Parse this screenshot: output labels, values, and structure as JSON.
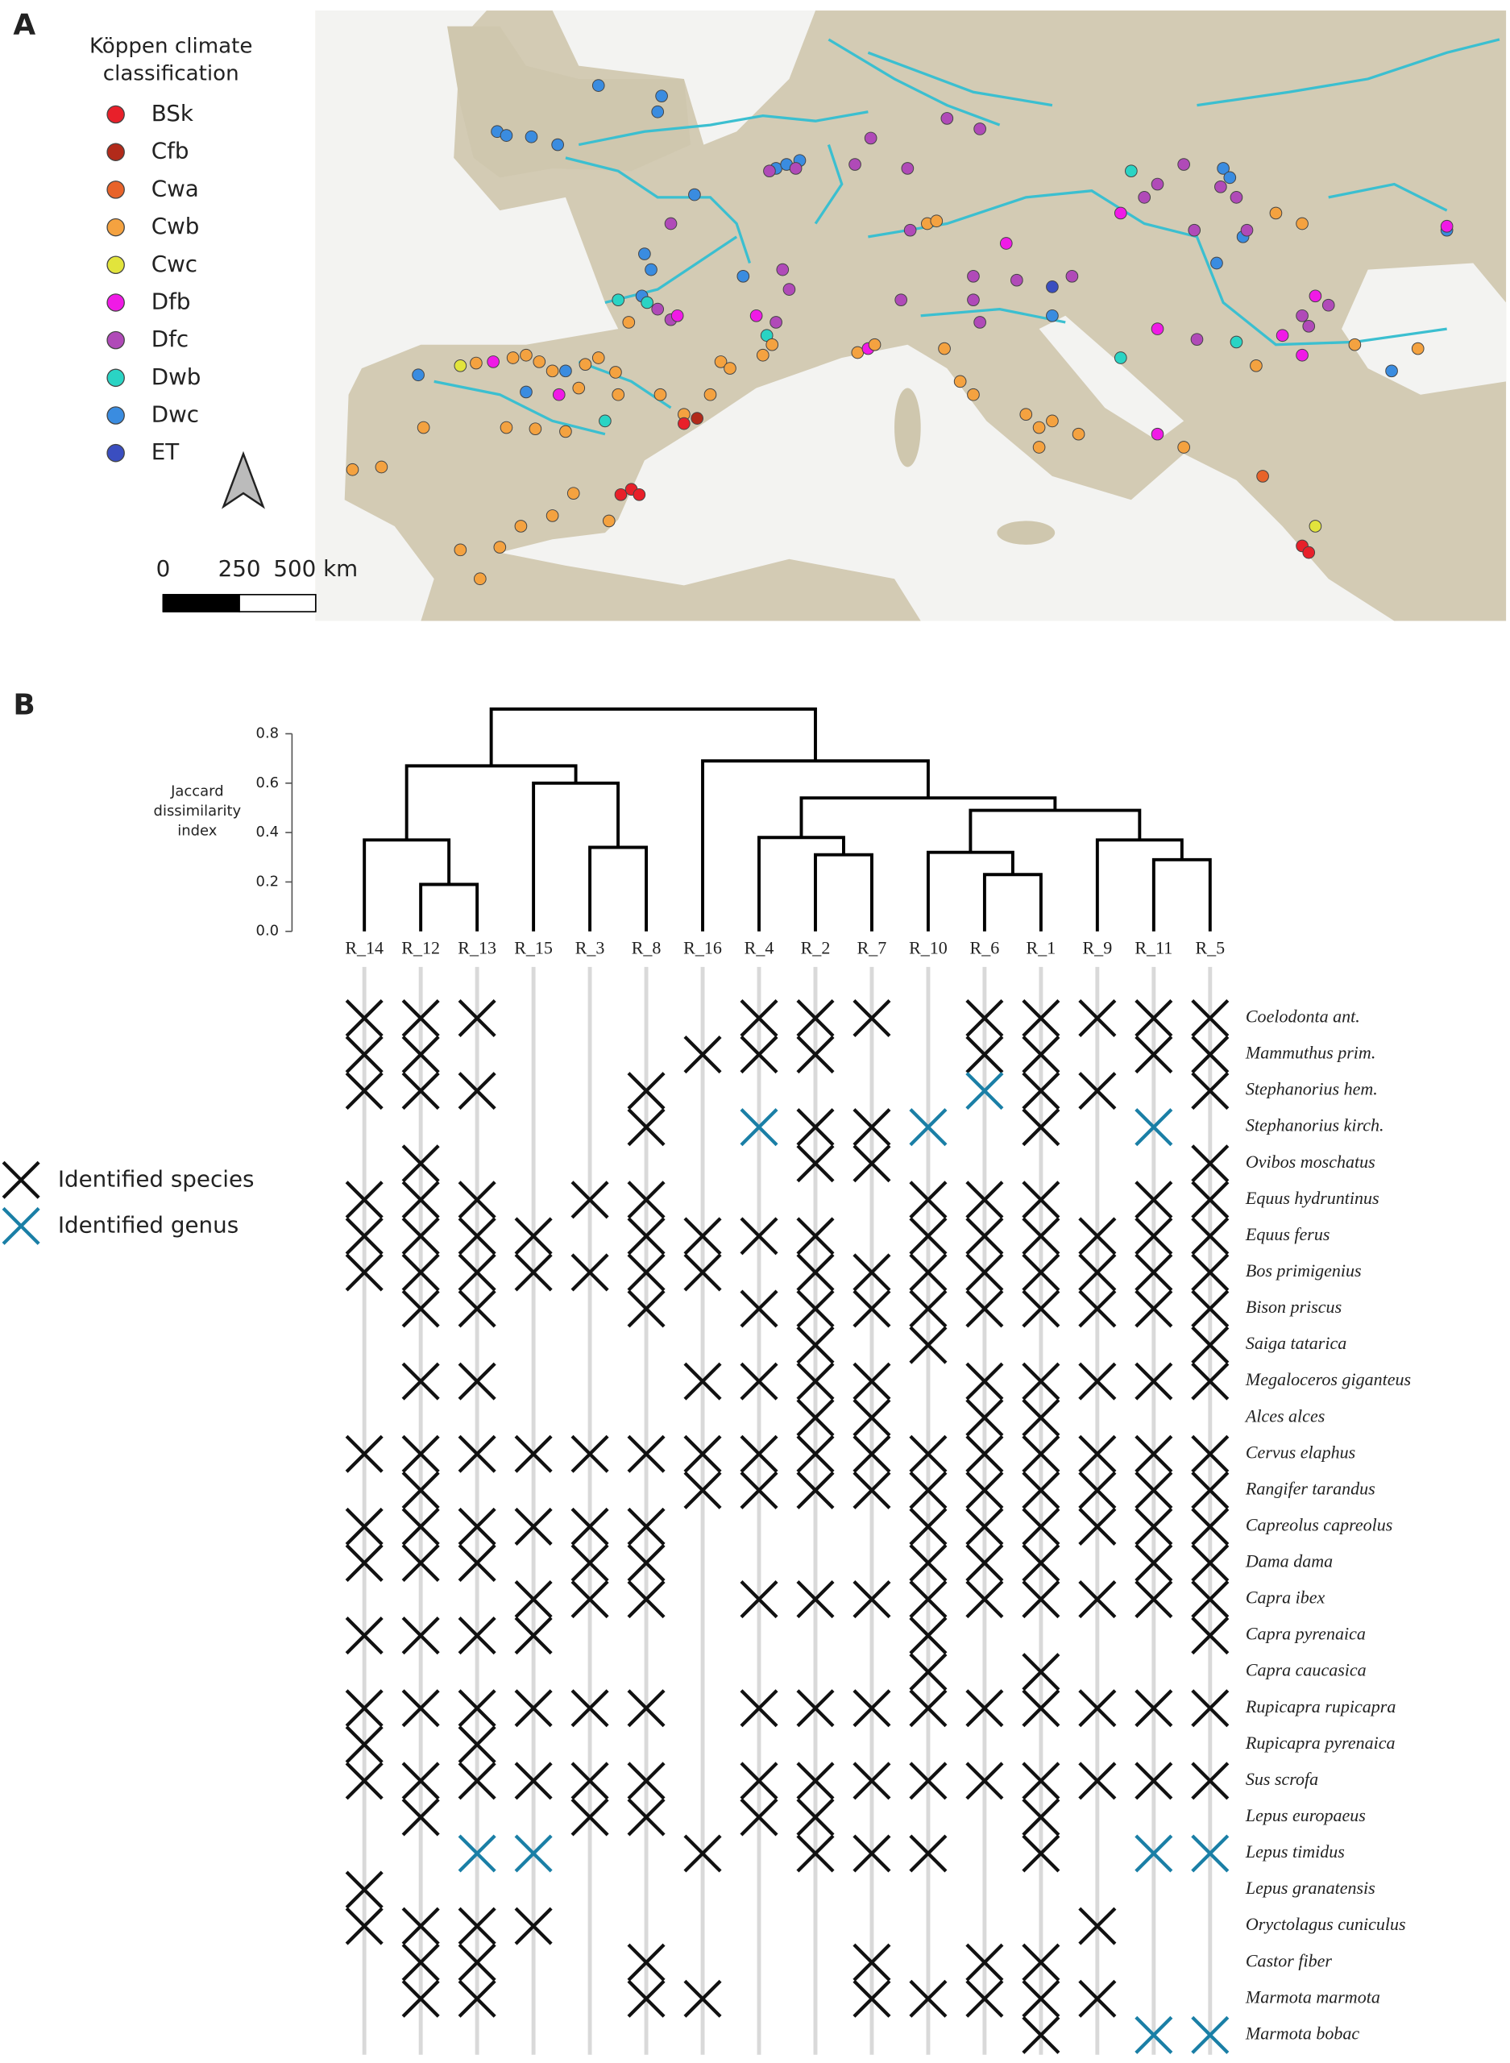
{
  "panel_labels": [
    "A",
    "B"
  ],
  "map": {
    "legend_title": "Köppen climate classification",
    "classes": [
      {
        "name": "BSk",
        "color": "#e8202a"
      },
      {
        "name": "Cfb",
        "color": "#b22a1a"
      },
      {
        "name": "Cwa",
        "color": "#e8632a"
      },
      {
        "name": "Cwb",
        "color": "#f4a240"
      },
      {
        "name": "Cwc",
        "color": "#e2e43c"
      },
      {
        "name": "Dfb",
        "color": "#f01ae6"
      },
      {
        "name": "Dfc",
        "color": "#b04ab8"
      },
      {
        "name": "Dwb",
        "color": "#2ad4c4"
      },
      {
        "name": "Dwc",
        "color": "#3a8ce0"
      },
      {
        "name": "ET",
        "color": "#3a4ec0"
      }
    ],
    "scale_bar": {
      "ticks": [
        0,
        250,
        {
          "value": 500,
          "label": "500 km"
        }
      ]
    }
  },
  "chart_data": {
    "type": "dendrogram",
    "y_label": "Jaccard dissimilarity index",
    "categories": [
      "R_14",
      "R_12",
      "R_13",
      "R_15",
      "R_3",
      "R_8",
      "R_16",
      "R_4",
      "R_2",
      "R_7",
      "R_10",
      "R_6",
      "R_1",
      "R_9",
      "R_11",
      "R_5"
    ],
    "ylim": [
      0,
      0.9
    ],
    "yticks": [
      {
        "value": 0,
        "label": "0.0"
      },
      0.2,
      0.4,
      0.6,
      0.8
    ],
    "merges": [
      {
        "left": 1,
        "right": 2,
        "height": 0.19
      },
      {
        "left": 0,
        "right": 16,
        "height": 0.37
      },
      {
        "left": 4,
        "right": 5,
        "height": 0.34
      },
      {
        "left": 3,
        "right": 18,
        "height": 0.6
      },
      {
        "left": 17,
        "right": 19,
        "height": 0.67
      },
      {
        "left": 8,
        "right": 9,
        "height": 0.31
      },
      {
        "left": 7,
        "right": 21,
        "height": 0.38
      },
      {
        "left": 11,
        "right": 12,
        "height": 0.23
      },
      {
        "left": 10,
        "right": 23,
        "height": 0.32
      },
      {
        "left": 14,
        "right": 15,
        "height": 0.29
      },
      {
        "left": 13,
        "right": 25,
        "height": 0.37
      },
      {
        "left": 24,
        "right": 26,
        "height": 0.49
      },
      {
        "left": 22,
        "right": 27,
        "height": 0.54
      },
      {
        "left": 6,
        "right": 28,
        "height": 0.69
      },
      {
        "left": 20,
        "right": 29,
        "height": 0.9
      }
    ],
    "rows": [
      "Coelodonta ant.",
      "Mammuthus prim.",
      "Stephanorius hem.",
      "Stephanorius kirch.",
      "Ovibos moschatus",
      "Equus hydruntinus",
      "Equus ferus",
      "Bos primigenius",
      "Bison priscus",
      "Saiga tatarica",
      "Megaloceros giganteus",
      "Alces alces",
      "Cervus elaphus",
      "Rangifer tarandus",
      "Capreolus capreolus",
      "Dama dama",
      "Capra ibex",
      "Capra pyrenaica",
      "Capra caucasica",
      "Rupicapra rupicapra",
      "Rupicapra pyrenaica",
      "Sus scrofa",
      "Lepus europaeus",
      "Lepus timidus",
      "Lepus granatensis",
      "Oryctolagus cuniculus",
      "Castor fiber",
      "Marmota marmota",
      "Marmota bobac"
    ],
    "matrix": [
      [
        1,
        1,
        1,
        0,
        0,
        0,
        0,
        1,
        1,
        1,
        0,
        1,
        1,
        1,
        1,
        1
      ],
      [
        1,
        1,
        0,
        0,
        0,
        0,
        1,
        1,
        1,
        0,
        0,
        1,
        1,
        0,
        1,
        1
      ],
      [
        1,
        1,
        1,
        0,
        0,
        1,
        0,
        0,
        0,
        0,
        0,
        2,
        1,
        1,
        0,
        1
      ],
      [
        0,
        0,
        0,
        0,
        0,
        1,
        0,
        2,
        1,
        1,
        2,
        0,
        1,
        0,
        2,
        0
      ],
      [
        0,
        1,
        0,
        0,
        0,
        0,
        0,
        0,
        1,
        1,
        0,
        0,
        0,
        0,
        0,
        1
      ],
      [
        1,
        1,
        1,
        0,
        1,
        1,
        0,
        0,
        0,
        0,
        1,
        1,
        1,
        0,
        1,
        1
      ],
      [
        1,
        1,
        1,
        1,
        0,
        1,
        1,
        1,
        1,
        0,
        1,
        1,
        1,
        1,
        1,
        1
      ],
      [
        1,
        1,
        1,
        1,
        1,
        1,
        1,
        0,
        1,
        1,
        1,
        1,
        1,
        1,
        1,
        1
      ],
      [
        0,
        1,
        1,
        0,
        0,
        1,
        0,
        1,
        1,
        1,
        1,
        1,
        1,
        1,
        1,
        1
      ],
      [
        0,
        0,
        0,
        0,
        0,
        0,
        0,
        0,
        1,
        0,
        1,
        0,
        0,
        0,
        0,
        1
      ],
      [
        0,
        1,
        1,
        0,
        0,
        0,
        1,
        1,
        1,
        1,
        0,
        1,
        1,
        1,
        1,
        1
      ],
      [
        0,
        0,
        0,
        0,
        0,
        0,
        0,
        0,
        1,
        1,
        0,
        1,
        1,
        0,
        0,
        0
      ],
      [
        1,
        1,
        1,
        1,
        1,
        1,
        1,
        1,
        1,
        1,
        1,
        1,
        1,
        1,
        1,
        1
      ],
      [
        0,
        1,
        0,
        0,
        0,
        0,
        1,
        1,
        1,
        1,
        1,
        1,
        1,
        1,
        1,
        1
      ],
      [
        1,
        1,
        1,
        1,
        1,
        1,
        0,
        0,
        0,
        0,
        1,
        1,
        1,
        1,
        1,
        1
      ],
      [
        1,
        1,
        1,
        0,
        1,
        1,
        0,
        0,
        0,
        0,
        1,
        1,
        1,
        0,
        1,
        1
      ],
      [
        0,
        0,
        0,
        1,
        1,
        1,
        0,
        1,
        1,
        1,
        1,
        1,
        1,
        1,
        1,
        1
      ],
      [
        1,
        1,
        1,
        1,
        0,
        0,
        0,
        0,
        0,
        0,
        1,
        0,
        0,
        0,
        0,
        1
      ],
      [
        0,
        0,
        0,
        0,
        0,
        0,
        0,
        0,
        0,
        0,
        1,
        0,
        1,
        0,
        0,
        0
      ],
      [
        1,
        1,
        1,
        1,
        1,
        1,
        0,
        1,
        1,
        1,
        1,
        1,
        1,
        1,
        1,
        1
      ],
      [
        1,
        0,
        1,
        0,
        0,
        0,
        0,
        0,
        0,
        0,
        0,
        0,
        0,
        0,
        0,
        0
      ],
      [
        1,
        1,
        1,
        1,
        1,
        1,
        0,
        1,
        1,
        1,
        1,
        1,
        1,
        1,
        1,
        1
      ],
      [
        0,
        1,
        0,
        0,
        1,
        1,
        0,
        1,
        1,
        0,
        0,
        0,
        1,
        0,
        0,
        0
      ],
      [
        0,
        0,
        2,
        2,
        0,
        0,
        1,
        0,
        1,
        1,
        1,
        0,
        1,
        0,
        2,
        2
      ],
      [
        1,
        0,
        0,
        0,
        0,
        0,
        0,
        0,
        0,
        0,
        0,
        0,
        0,
        0,
        0,
        0
      ],
      [
        1,
        1,
        1,
        1,
        0,
        0,
        0,
        0,
        0,
        0,
        0,
        0,
        0,
        1,
        0,
        0
      ],
      [
        0,
        1,
        1,
        0,
        0,
        1,
        0,
        0,
        0,
        1,
        0,
        1,
        1,
        0,
        0,
        0
      ],
      [
        0,
        1,
        1,
        0,
        0,
        1,
        1,
        0,
        0,
        1,
        1,
        1,
        1,
        1,
        0,
        0
      ],
      [
        0,
        0,
        0,
        0,
        0,
        0,
        0,
        0,
        0,
        0,
        0,
        0,
        1,
        0,
        2,
        2
      ]
    ],
    "legend": [
      {
        "name": "Identified species",
        "color": "#111111"
      },
      {
        "name": "Identified genus",
        "color": "#1a7fa6"
      }
    ]
  }
}
